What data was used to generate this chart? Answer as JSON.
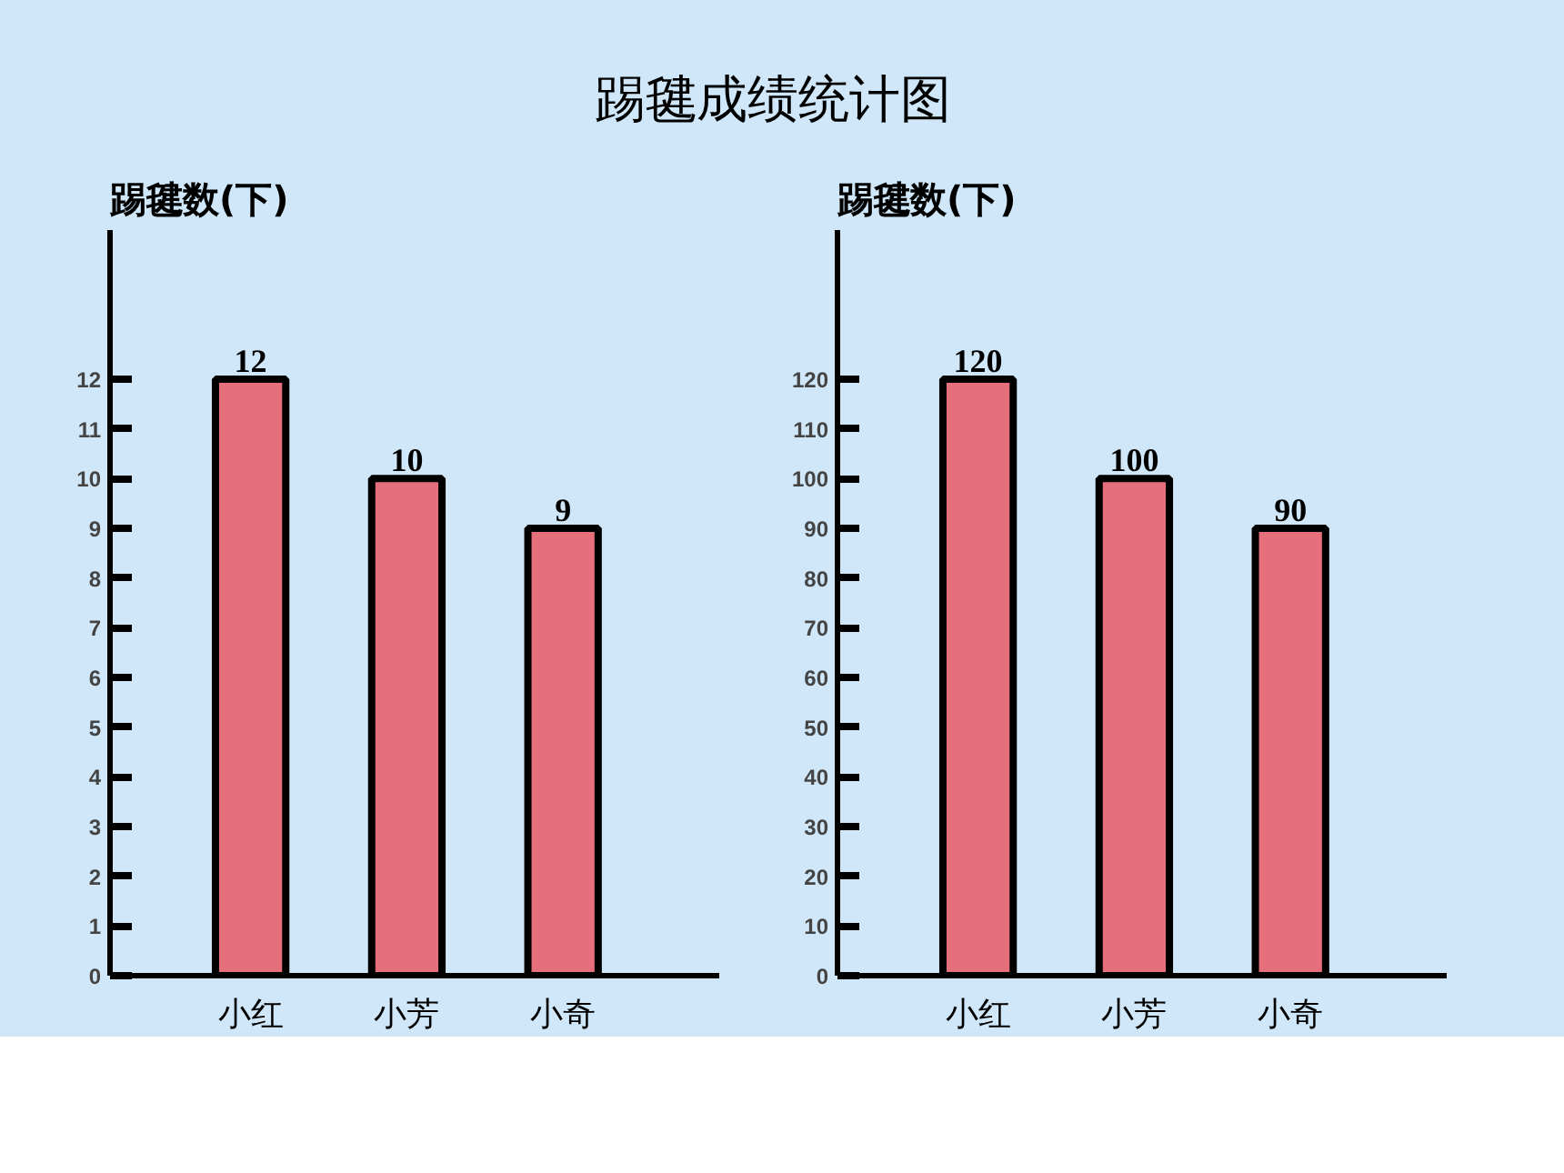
{
  "chart_data": [
    {
      "type": "bar",
      "title": "踢毽成绩统计图",
      "ylabel": "踢毽数(下)",
      "categories": [
        "小红",
        "小芳",
        "小奇"
      ],
      "values": [
        12,
        10,
        9
      ],
      "color": "#e5707c",
      "ylim": [
        0,
        15
      ],
      "yticks": [
        0,
        1,
        2,
        3,
        4,
        5,
        6,
        7,
        8,
        9,
        10,
        11,
        12
      ],
      "grid": false,
      "data_labels": true
    },
    {
      "type": "bar",
      "ylabel": "踢毽数(下)",
      "categories": [
        "小红",
        "小芳",
        "小奇"
      ],
      "values": [
        120,
        100,
        90
      ],
      "color": "#e5707c",
      "ylim": [
        0,
        150
      ],
      "yticks": [
        0,
        10,
        20,
        30,
        40,
        50,
        60,
        70,
        80,
        90,
        100,
        110,
        120
      ],
      "grid": false,
      "data_labels": true
    }
  ]
}
